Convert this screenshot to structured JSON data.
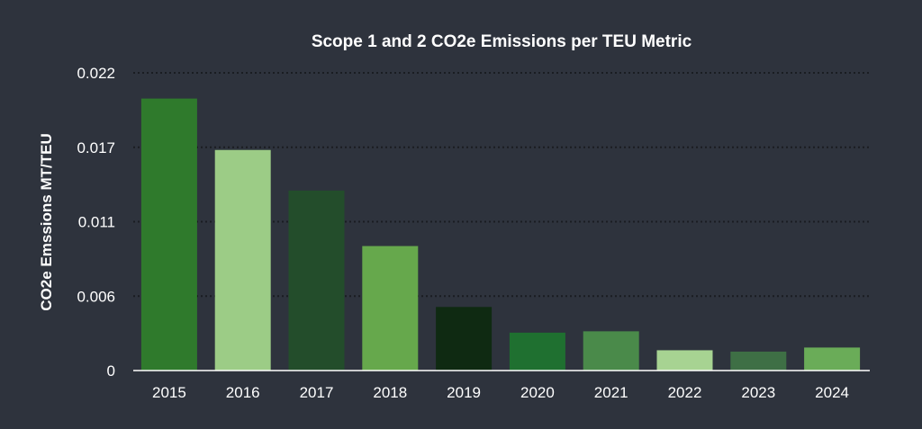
{
  "colors": {
    "background": "#2e333d",
    "text": "#ffffff",
    "gridline": "#1a1d22",
    "axis": "#ffffff"
  },
  "chart_data": {
    "type": "bar",
    "title": "Scope 1 and 2 CO2e Emissions per TEU Metric",
    "xlabel": "",
    "ylabel": "CO2e Emssions MT/TEU",
    "ylim": [
      0,
      0.022
    ],
    "y_ticks": [
      0,
      0.0055,
      0.011,
      0.0165,
      0.022
    ],
    "y_tick_labels": [
      "0",
      "0.006",
      "0.011",
      "0.017",
      "0.022"
    ],
    "grid": "horizontal-dotted",
    "categories": [
      "2015",
      "2016",
      "2017",
      "2018",
      "2019",
      "2020",
      "2021",
      "2022",
      "2023",
      "2024"
    ],
    "values": [
      0.0201,
      0.0163,
      0.0133,
      0.0092,
      0.0047,
      0.0028,
      0.0029,
      0.0015,
      0.0014,
      0.0017
    ],
    "bar_colors": [
      "#2f7a2c",
      "#9ccc86",
      "#234d2b",
      "#66a84c",
      "#0f2a12",
      "#1f7030",
      "#4a8a4a",
      "#a7d392",
      "#3e6f45",
      "#6aac58"
    ]
  }
}
